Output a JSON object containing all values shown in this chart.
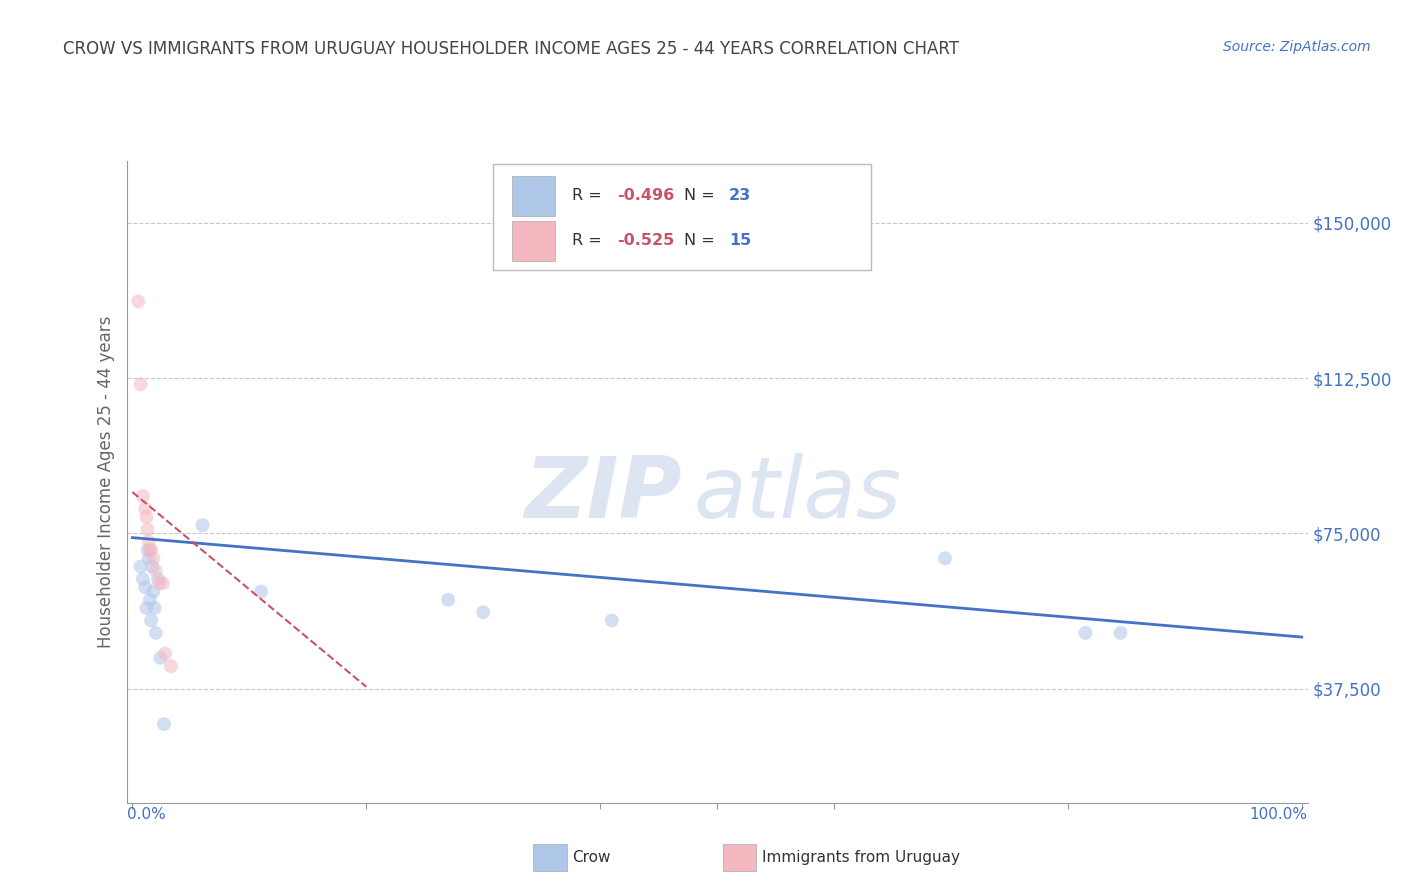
{
  "title": "CROW VS IMMIGRANTS FROM URUGUAY HOUSEHOLDER INCOME AGES 25 - 44 YEARS CORRELATION CHART",
  "source": "Source: ZipAtlas.com",
  "ylabel": "Householder Income Ages 25 - 44 years",
  "ytick_labels": [
    "$37,500",
    "$75,000",
    "$112,500",
    "$150,000"
  ],
  "ytick_values": [
    37500,
    75000,
    112500,
    150000
  ],
  "ymin": 10000,
  "ymax": 165000,
  "xmin": -0.005,
  "xmax": 1.005,
  "crow_R": -0.496,
  "crow_N": 23,
  "uruguay_R": -0.525,
  "uruguay_N": 15,
  "crow_color": "#aec6e8",
  "crow_line_color": "#4472c4",
  "uruguay_color": "#f4b8c1",
  "uruguay_line_color": "#c9536a",
  "background_color": "#ffffff",
  "grid_color": "#c8c8c8",
  "title_color": "#444444",
  "source_color": "#4472c4",
  "R_color": "#c9536a",
  "N_color": "#4472c4",
  "crow_scatter_x": [
    0.007,
    0.009,
    0.011,
    0.012,
    0.013,
    0.014,
    0.015,
    0.016,
    0.017,
    0.018,
    0.019,
    0.02,
    0.022,
    0.024,
    0.027,
    0.06,
    0.11,
    0.27,
    0.3,
    0.41,
    0.695,
    0.815,
    0.845
  ],
  "crow_scatter_y": [
    67000,
    64000,
    62000,
    57000,
    71000,
    69000,
    59000,
    54000,
    67000,
    61000,
    57000,
    51000,
    64000,
    45000,
    29000,
    77000,
    61000,
    59000,
    56000,
    54000,
    69000,
    51000,
    51000
  ],
  "uruguay_scatter_x": [
    0.005,
    0.007,
    0.009,
    0.011,
    0.012,
    0.013,
    0.014,
    0.015,
    0.016,
    0.018,
    0.02,
    0.023,
    0.026,
    0.028,
    0.033
  ],
  "uruguay_scatter_y": [
    131000,
    111000,
    84000,
    81000,
    79000,
    76000,
    73000,
    71000,
    71000,
    69000,
    66000,
    63000,
    63000,
    46000,
    43000
  ],
  "crow_line_x": [
    0.0,
    1.0
  ],
  "crow_line_y": [
    74000,
    50000
  ],
  "uruguay_line_x": [
    0.0,
    0.2
  ],
  "uruguay_line_y": [
    85000,
    38000
  ],
  "watermark_top": "ZIP",
  "watermark_bot": "atlas",
  "marker_size": 100,
  "marker_alpha": 0.55
}
